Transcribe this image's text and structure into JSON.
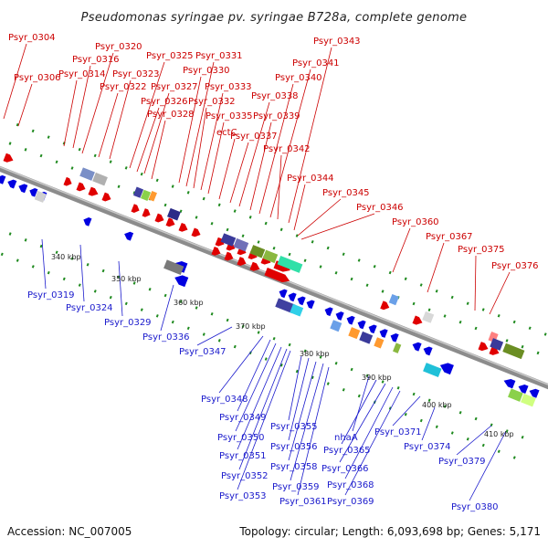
{
  "title": "Pseudomonas syringae pv. syringae B728a, complete genome",
  "footer": {
    "accession": "Accession: NC_007005",
    "summary": "Topology: circular; Length: 6,093,698 bp; Genes: 5,171"
  },
  "colors": {
    "forward": "#e00000",
    "reverse": "#0000e0",
    "top_label": "#cc0000",
    "bottom_label": "#1a1acc",
    "backbone": "#8c8c8c",
    "dots": "#1f8a1f"
  },
  "scale_ticks": [
    "340 kbp",
    "350 kbp",
    "360 kbp",
    "370 kbp",
    "380 kbp",
    "390 kbp",
    "400 kbp",
    "410 kbp"
  ],
  "top_labels": [
    "Psyr_0304",
    "Psyr_0306",
    "Psyr_0314",
    "Psyr_0316",
    "Psyr_0320",
    "Psyr_0322",
    "Psyr_0323",
    "Psyr_0325",
    "Psyr_0326",
    "Psyr_0327",
    "Psyr_0328",
    "Psyr_0330",
    "Psyr_0331",
    "Psyr_0332",
    "Psyr_0333",
    "Psyr_0335",
    "ectC",
    "Psyr_0337",
    "Psyr_0338",
    "Psyr_0339",
    "Psyr_0340",
    "Psyr_0341",
    "Psyr_0342",
    "Psyr_0343",
    "Psyr_0344",
    "Psyr_0345",
    "Psyr_0346",
    "Psyr_0360",
    "Psyr_0367",
    "Psyr_0375",
    "Psyr_0376"
  ],
  "bottom_labels": [
    "Psyr_0319",
    "Psyr_0324",
    "Psyr_0329",
    "Psyr_0336",
    "Psyr_0347",
    "Psyr_0348",
    "Psyr_0349",
    "Psyr_0350",
    "Psyr_0351",
    "Psyr_0352",
    "Psyr_0353",
    "Psyr_0355",
    "Psyr_0356",
    "Psyr_0358",
    "Psyr_0359",
    "Psyr_0361",
    "nhaA",
    "Psyr_0365",
    "Psyr_0366",
    "Psyr_0368",
    "Psyr_0369",
    "Psyr_0371",
    "Psyr_0374",
    "Psyr_0379",
    "Psyr_0380"
  ]
}
